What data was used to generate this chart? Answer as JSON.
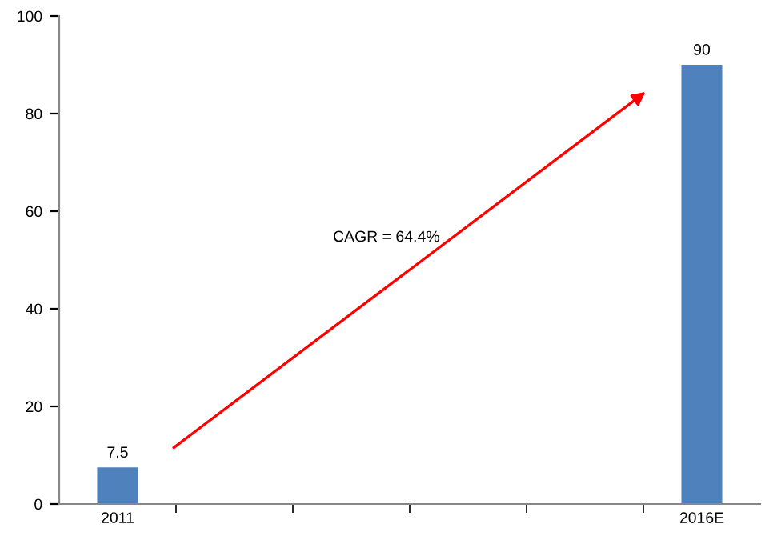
{
  "chart_data": {
    "type": "bar",
    "categories": [
      "2011",
      null,
      null,
      null,
      null,
      "2016E"
    ],
    "values": [
      7.5,
      null,
      null,
      null,
      null,
      90
    ],
    "color": "#4f81bd",
    "ylim": [
      0,
      100
    ],
    "yticks": [
      0,
      20,
      40,
      60,
      80,
      100
    ],
    "grid": false,
    "data_labels": true,
    "annotations": [
      "CAGR = 64.4%"
    ]
  }
}
